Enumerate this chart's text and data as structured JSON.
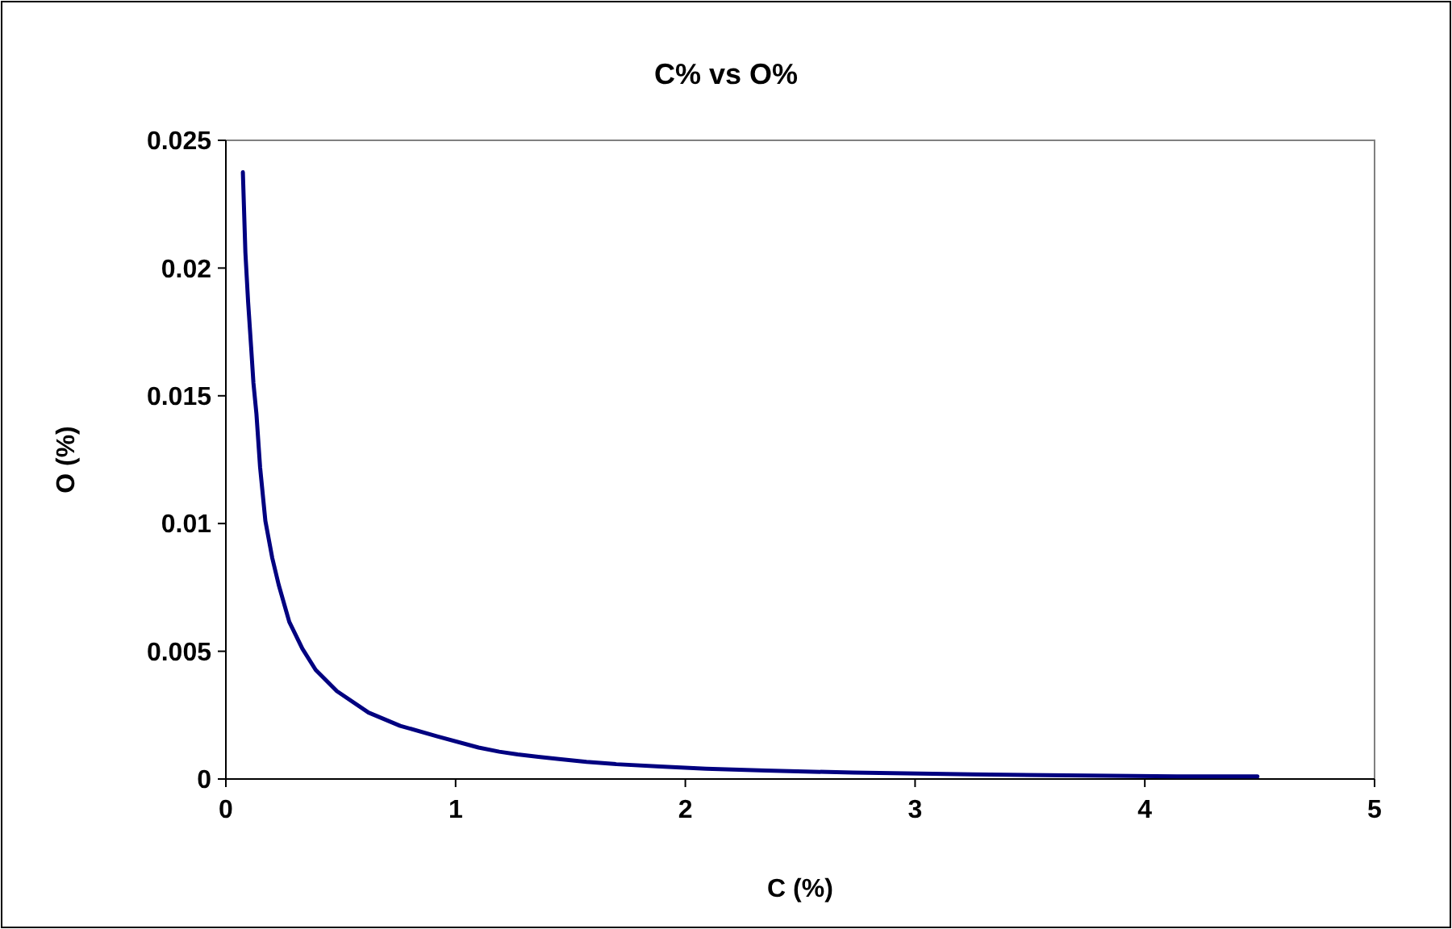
{
  "chart_data": {
    "type": "line",
    "title": "C% vs O%",
    "xlabel": "C (%)",
    "ylabel": "O (%)",
    "xlim": [
      0,
      5
    ],
    "xticks": [
      0,
      1,
      2,
      3,
      4,
      5
    ],
    "ylim": [
      0,
      0.025
    ],
    "yticks": [
      0,
      0.005,
      0.01,
      0.015,
      0.02,
      0.025
    ],
    "line_style": "solid",
    "series": [
      {
        "color": "#000080",
        "x": [
          0.074,
          0.085,
          0.097,
          0.11,
          0.12,
          0.133,
          0.149,
          0.172,
          0.202,
          0.23,
          0.276,
          0.333,
          0.391,
          0.483,
          0.621,
          0.759,
          0.92,
          1.1,
          1.19,
          1.27,
          1.36,
          1.45,
          1.57,
          1.7,
          1.89,
          2.09,
          2.35,
          2.73,
          3.25,
          4.14,
          4.49
        ],
        "values": [
          0.02375,
          0.0206,
          0.01865,
          0.0169,
          0.0155,
          0.0143,
          0.0122,
          0.0101,
          0.00865,
          0.0076,
          0.00615,
          0.0051,
          0.00427,
          0.00344,
          0.0026,
          0.00208,
          0.00167,
          0.00123,
          0.00107,
          0.00096,
          0.00087,
          0.00078,
          0.00067,
          0.00058,
          0.00049,
          0.0004,
          0.00033,
          0.00025,
          0.00018,
          0.0001,
          0.0001
        ]
      }
    ]
  }
}
